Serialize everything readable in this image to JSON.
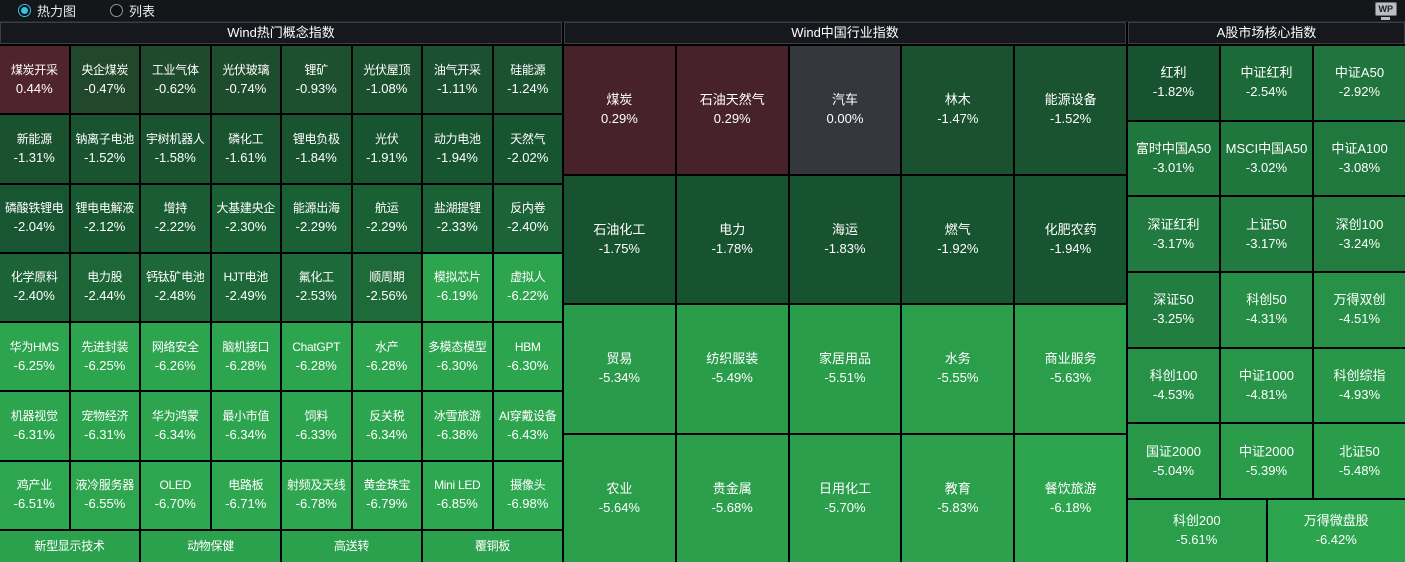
{
  "toolbar": {
    "radio_heatmap": "热力图",
    "radio_list": "列表",
    "wp_icon": "WP"
  },
  "colors": {
    "accent_cyan": "#35c5e3",
    "background": "#000000",
    "topbar_bg": "#14161a",
    "header_bg": "#16181d",
    "neutral_gray": "#34383e",
    "label_cell_green": "#2ba04d",
    "text": "#ffffff"
  },
  "color_scale": {
    "negative": [
      [
        0,
        "#3b4046"
      ],
      [
        0.45,
        "#21482b"
      ],
      [
        1.0,
        "#1c5130"
      ],
      [
        2.0,
        "#175430"
      ],
      [
        2.6,
        "#1e6c3a"
      ],
      [
        3.3,
        "#227e41"
      ],
      [
        4.6,
        "#279347"
      ],
      [
        5.4,
        "#2a9c4a"
      ],
      [
        6.2,
        "#2da44e"
      ],
      [
        7.1,
        "#2ea951"
      ]
    ],
    "positive": [
      [
        0,
        "#3b4046"
      ],
      [
        0.29,
        "#47222a"
      ],
      [
        0.45,
        "#50242c"
      ],
      [
        1.0,
        "#5d2832"
      ]
    ]
  },
  "panels": [
    {
      "title": "Wind热门概念指数",
      "cells": [
        {
          "label": "煤炭开采",
          "value": "0.44%"
        },
        {
          "label": "央企煤炭",
          "value": "-0.47%"
        },
        {
          "label": "工业气体",
          "value": "-0.62%"
        },
        {
          "label": "光伏玻璃",
          "value": "-0.74%"
        },
        {
          "label": "锂矿",
          "value": "-0.93%"
        },
        {
          "label": "光伏屋顶",
          "value": "-1.08%"
        },
        {
          "label": "油气开采",
          "value": "-1.11%"
        },
        {
          "label": "硅能源",
          "value": "-1.24%"
        },
        {
          "label": "新能源",
          "value": "-1.31%"
        },
        {
          "label": "钠离子电池",
          "value": "-1.52%"
        },
        {
          "label": "宇树机器人",
          "value": "-1.58%"
        },
        {
          "label": "磷化工",
          "value": "-1.61%"
        },
        {
          "label": "锂电负极",
          "value": "-1.84%"
        },
        {
          "label": "光伏",
          "value": "-1.91%"
        },
        {
          "label": "动力电池",
          "value": "-1.94%"
        },
        {
          "label": "天然气",
          "value": "-2.02%"
        },
        {
          "label": "磷酸铁锂电",
          "value": "-2.04%"
        },
        {
          "label": "锂电电解液",
          "value": "-2.12%"
        },
        {
          "label": "增持",
          "value": "-2.22%"
        },
        {
          "label": "大基建央企",
          "value": "-2.30%"
        },
        {
          "label": "能源出海",
          "value": "-2.29%"
        },
        {
          "label": "航运",
          "value": "-2.29%"
        },
        {
          "label": "盐湖提锂",
          "value": "-2.33%"
        },
        {
          "label": "反内卷",
          "value": "-2.40%"
        },
        {
          "label": "化学原料",
          "value": "-2.40%"
        },
        {
          "label": "电力股",
          "value": "-2.44%"
        },
        {
          "label": "钙钛矿电池",
          "value": "-2.48%"
        },
        {
          "label": "HJT电池",
          "value": "-2.49%"
        },
        {
          "label": "氟化工",
          "value": "-2.53%"
        },
        {
          "label": "顺周期",
          "value": "-2.56%"
        },
        {
          "label": "模拟芯片",
          "value": "-6.19%"
        },
        {
          "label": "虚拟人",
          "value": "-6.22%"
        },
        {
          "label": "华为HMS",
          "value": "-6.25%"
        },
        {
          "label": "先进封装",
          "value": "-6.25%"
        },
        {
          "label": "网络安全",
          "value": "-6.26%"
        },
        {
          "label": "脑机接口",
          "value": "-6.28%"
        },
        {
          "label": "ChatGPT",
          "value": "-6.28%"
        },
        {
          "label": "水产",
          "value": "-6.28%"
        },
        {
          "label": "多模态模型",
          "value": "-6.30%"
        },
        {
          "label": "HBM",
          "value": "-6.30%"
        },
        {
          "label": "机器视觉",
          "value": "-6.31%"
        },
        {
          "label": "宠物经济",
          "value": "-6.31%"
        },
        {
          "label": "华为鸿蒙",
          "value": "-6.34%"
        },
        {
          "label": "最小市值",
          "value": "-6.34%"
        },
        {
          "label": "饲料",
          "value": "-6.33%"
        },
        {
          "label": "反关税",
          "value": "-6.34%"
        },
        {
          "label": "冰雪旅游",
          "value": "-6.38%"
        },
        {
          "label": "AI穿戴设备",
          "value": "-6.43%"
        },
        {
          "label": "鸡产业",
          "value": "-6.51%"
        },
        {
          "label": "液冷服务器",
          "value": "-6.55%"
        },
        {
          "label": "OLED",
          "value": "-6.70%"
        },
        {
          "label": "电路板",
          "value": "-6.71%"
        },
        {
          "label": "射频及天线",
          "value": "-6.78%"
        },
        {
          "label": "黄金珠宝",
          "value": "-6.79%"
        },
        {
          "label": "Mini LED",
          "value": "-6.85%"
        },
        {
          "label": "摄像头",
          "value": "-6.98%"
        }
      ],
      "footer_cells": [
        {
          "label": "新型显示技术",
          "value": null
        },
        {
          "label": "动物保健",
          "value": null
        },
        {
          "label": "高送转",
          "value": null
        },
        {
          "label": "覆铜板",
          "value": null
        }
      ]
    },
    {
      "title": "Wind中国行业指数",
      "cells": [
        {
          "label": "煤炭",
          "value": "0.29%"
        },
        {
          "label": "石油天然气",
          "value": "0.29%"
        },
        {
          "label": "汽车",
          "value": "0.00%"
        },
        {
          "label": "林木",
          "value": "-1.47%"
        },
        {
          "label": "能源设备",
          "value": "-1.52%"
        },
        {
          "label": "石油化工",
          "value": "-1.75%"
        },
        {
          "label": "电力",
          "value": "-1.78%"
        },
        {
          "label": "海运",
          "value": "-1.83%"
        },
        {
          "label": "燃气",
          "value": "-1.92%"
        },
        {
          "label": "化肥农药",
          "value": "-1.94%"
        },
        {
          "label": "贸易",
          "value": "-5.34%"
        },
        {
          "label": "纺织服装",
          "value": "-5.49%"
        },
        {
          "label": "家居用品",
          "value": "-5.51%"
        },
        {
          "label": "水务",
          "value": "-5.55%"
        },
        {
          "label": "商业服务",
          "value": "-5.63%"
        },
        {
          "label": "农业",
          "value": "-5.64%"
        },
        {
          "label": "贵金属",
          "value": "-5.68%"
        },
        {
          "label": "日用化工",
          "value": "-5.70%"
        },
        {
          "label": "教育",
          "value": "-5.83%"
        },
        {
          "label": "餐饮旅游",
          "value": "-6.18%"
        }
      ],
      "footer_cells": []
    },
    {
      "title": "A股市场核心指数",
      "cells": [
        {
          "label": "红利",
          "value": "-1.82%"
        },
        {
          "label": "中证红利",
          "value": "-2.54%"
        },
        {
          "label": "中证A50",
          "value": "-2.92%"
        },
        {
          "label": "富时中国A50",
          "value": "-3.01%"
        },
        {
          "label": "MSCI中国A50",
          "value": "-3.02%"
        },
        {
          "label": "中证A100",
          "value": "-3.08%"
        },
        {
          "label": "深证红利",
          "value": "-3.17%"
        },
        {
          "label": "上证50",
          "value": "-3.17%"
        },
        {
          "label": "深创100",
          "value": "-3.24%"
        },
        {
          "label": "深证50",
          "value": "-3.25%"
        },
        {
          "label": "科创50",
          "value": "-4.31%"
        },
        {
          "label": "万得双创",
          "value": "-4.51%"
        },
        {
          "label": "科创100",
          "value": "-4.53%"
        },
        {
          "label": "中证1000",
          "value": "-4.81%"
        },
        {
          "label": "科创综指",
          "value": "-4.93%"
        },
        {
          "label": "国证2000",
          "value": "-5.04%"
        },
        {
          "label": "中证2000",
          "value": "-5.39%"
        },
        {
          "label": "北证50",
          "value": "-5.48%"
        }
      ],
      "footer_cells": [
        {
          "label": "科创200",
          "value": "-5.61%"
        },
        {
          "label": "万得微盘股",
          "value": "-6.42%"
        }
      ]
    }
  ]
}
